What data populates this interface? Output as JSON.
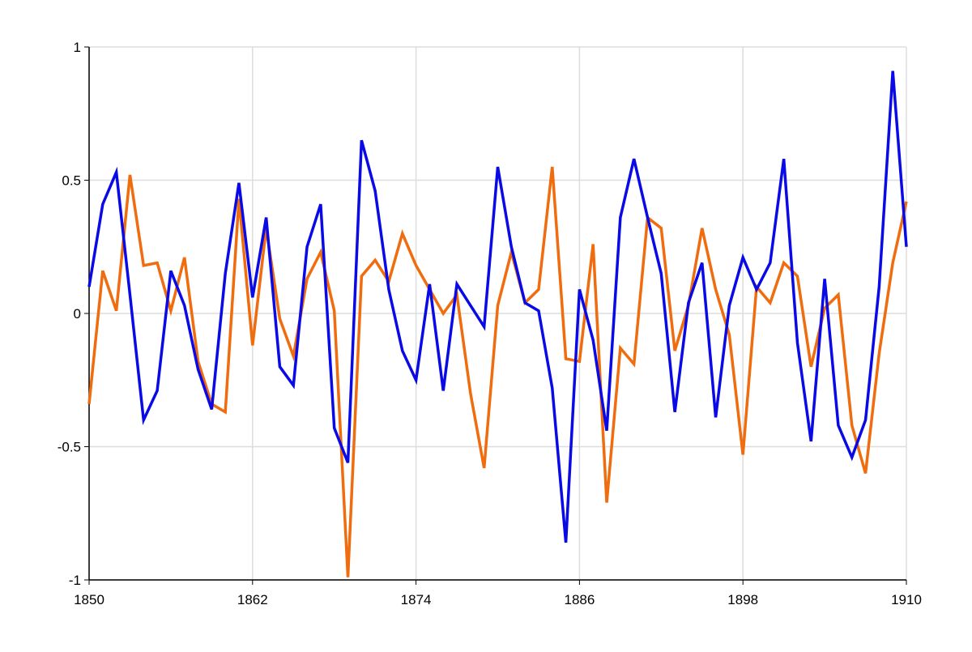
{
  "chart_data": {
    "type": "line",
    "x": [
      1850,
      1851,
      1852,
      1853,
      1854,
      1855,
      1856,
      1857,
      1858,
      1859,
      1860,
      1861,
      1862,
      1863,
      1864,
      1865,
      1866,
      1867,
      1868,
      1869,
      1870,
      1871,
      1872,
      1873,
      1874,
      1875,
      1876,
      1877,
      1878,
      1879,
      1880,
      1881,
      1882,
      1883,
      1884,
      1885,
      1886,
      1887,
      1888,
      1889,
      1890,
      1891,
      1892,
      1893,
      1894,
      1895,
      1896,
      1897,
      1898,
      1899,
      1900,
      1901,
      1902,
      1903,
      1904,
      1905,
      1906,
      1907,
      1908,
      1909,
      1910
    ],
    "series": [
      {
        "color": "#ef6c0f",
        "values": [
          -0.34,
          0.16,
          0.01,
          0.52,
          0.18,
          0.19,
          0.01,
          0.21,
          -0.18,
          -0.34,
          -0.37,
          0.43,
          -0.12,
          0.32,
          -0.02,
          -0.16,
          0.13,
          0.23,
          0.01,
          -0.99,
          0.14,
          0.2,
          0.12,
          0.3,
          0.18,
          0.09,
          0.0,
          0.07,
          -0.3,
          -0.58,
          0.03,
          0.23,
          0.04,
          0.09,
          0.55,
          -0.17,
          -0.18,
          0.26,
          -0.71,
          -0.13,
          -0.19,
          0.36,
          0.32,
          -0.14,
          0.03,
          0.32,
          0.09,
          -0.08,
          -0.53,
          0.1,
          0.04,
          0.19,
          0.14,
          -0.2,
          0.02,
          0.07,
          -0.42,
          -0.6,
          -0.15,
          0.19,
          0.42
        ]
      },
      {
        "color": "#0a0ae6",
        "values": [
          0.1,
          0.41,
          0.53,
          0.07,
          -0.4,
          -0.29,
          0.16,
          0.03,
          -0.21,
          -0.36,
          0.15,
          0.49,
          0.06,
          0.36,
          -0.2,
          -0.27,
          0.25,
          0.41,
          -0.43,
          -0.56,
          0.65,
          0.46,
          0.09,
          -0.14,
          -0.25,
          0.11,
          -0.29,
          0.11,
          0.03,
          -0.05,
          0.55,
          0.25,
          0.04,
          0.01,
          -0.28,
          -0.86,
          0.09,
          -0.1,
          -0.44,
          0.36,
          0.58,
          0.36,
          0.15,
          -0.37,
          0.04,
          0.19,
          -0.39,
          0.03,
          0.21,
          0.09,
          0.19,
          0.58,
          -0.11,
          -0.48,
          0.13,
          -0.42,
          -0.54,
          -0.4,
          0.1,
          0.91,
          0.25
        ]
      }
    ],
    "xlim": [
      1850,
      1910
    ],
    "xticks": [
      1850,
      1862,
      1874,
      1886,
      1898,
      1910
    ],
    "ylim": [
      -1,
      1
    ],
    "yticks": [
      -1,
      -0.5,
      0,
      0.5,
      1
    ],
    "grid": true
  }
}
